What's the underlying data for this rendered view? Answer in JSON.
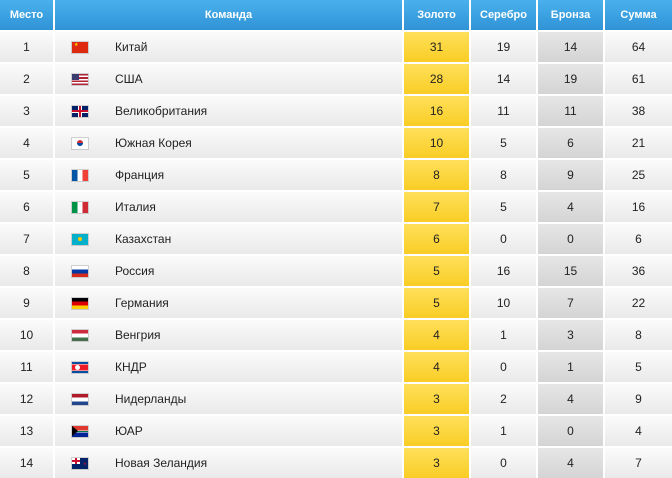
{
  "header": {
    "place": "Место",
    "team": "Команда",
    "gold": "Золото",
    "silver": "Серебро",
    "bronze": "Бронза",
    "total": "Сумма"
  },
  "colors": {
    "header_blue": "#2f93d6",
    "gold_column": "#f9cd25",
    "bronze_column": "#d4d4d4"
  },
  "rows": [
    {
      "place": "1",
      "team": "Китай",
      "flag": "china-flag-icon",
      "gold": "31",
      "silver": "19",
      "bronze": "14",
      "total": "64"
    },
    {
      "place": "2",
      "team": "США",
      "flag": "usa-flag-icon",
      "gold": "28",
      "silver": "14",
      "bronze": "19",
      "total": "61"
    },
    {
      "place": "3",
      "team": "Великобритания",
      "flag": "uk-flag-icon",
      "gold": "16",
      "silver": "11",
      "bronze": "11",
      "total": "38"
    },
    {
      "place": "4",
      "team": "Южная Корея",
      "flag": "south-korea-flag-icon",
      "gold": "10",
      "silver": "5",
      "bronze": "6",
      "total": "21"
    },
    {
      "place": "5",
      "team": "Франция",
      "flag": "france-flag-icon",
      "gold": "8",
      "silver": "8",
      "bronze": "9",
      "total": "25"
    },
    {
      "place": "6",
      "team": "Италия",
      "flag": "italy-flag-icon",
      "gold": "7",
      "silver": "5",
      "bronze": "4",
      "total": "16"
    },
    {
      "place": "7",
      "team": "Казахстан",
      "flag": "kazakhstan-flag-icon",
      "gold": "6",
      "silver": "0",
      "bronze": "0",
      "total": "6"
    },
    {
      "place": "8",
      "team": "Россия",
      "flag": "russia-flag-icon",
      "gold": "5",
      "silver": "16",
      "bronze": "15",
      "total": "36"
    },
    {
      "place": "9",
      "team": "Германия",
      "flag": "germany-flag-icon",
      "gold": "5",
      "silver": "10",
      "bronze": "7",
      "total": "22"
    },
    {
      "place": "10",
      "team": "Венгрия",
      "flag": "hungary-flag-icon",
      "gold": "4",
      "silver": "1",
      "bronze": "3",
      "total": "8"
    },
    {
      "place": "11",
      "team": "КНДР",
      "flag": "north-korea-flag-icon",
      "gold": "4",
      "silver": "0",
      "bronze": "1",
      "total": "5"
    },
    {
      "place": "12",
      "team": "Нидерланды",
      "flag": "netherlands-flag-icon",
      "gold": "3",
      "silver": "2",
      "bronze": "4",
      "total": "9"
    },
    {
      "place": "13",
      "team": "ЮАР",
      "flag": "south-africa-flag-icon",
      "gold": "3",
      "silver": "1",
      "bronze": "0",
      "total": "4"
    },
    {
      "place": "14",
      "team": "Новая Зеландия",
      "flag": "new-zealand-flag-icon",
      "gold": "3",
      "silver": "0",
      "bronze": "4",
      "total": "7"
    }
  ]
}
